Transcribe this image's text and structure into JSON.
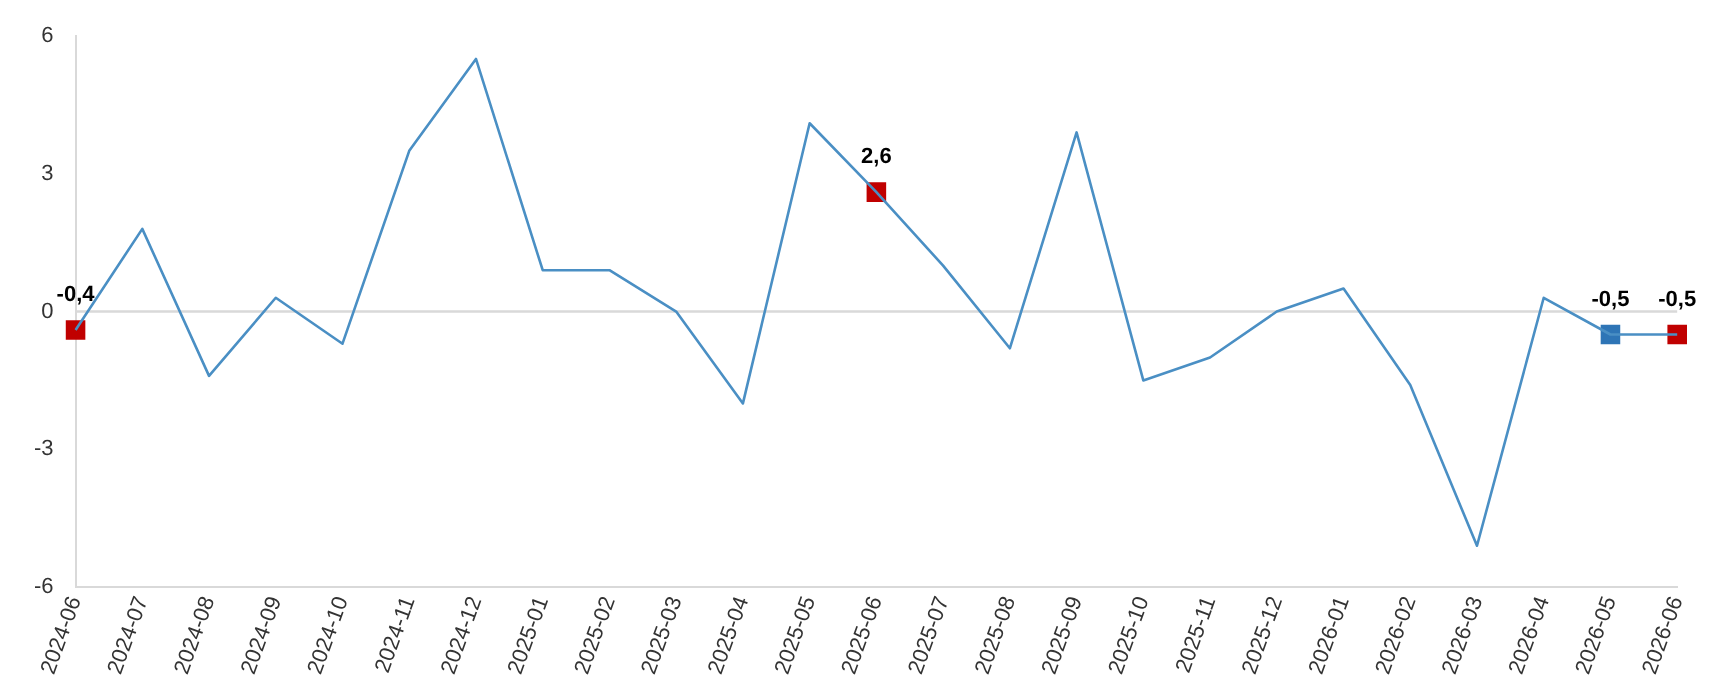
{
  "chart_data": {
    "type": "line",
    "categories": [
      "2024-06",
      "2024-07",
      "2024-08",
      "2024-09",
      "2024-10",
      "2024-11",
      "2024-12",
      "2025-01",
      "2025-02",
      "2025-03",
      "2025-04",
      "2025-05",
      "2025-06",
      "2025-07",
      "2025-08",
      "2025-09",
      "2025-10",
      "2025-11",
      "2025-12",
      "2026-01",
      "2026-02",
      "2026-03",
      "2026-04",
      "2026-05",
      "2026-06"
    ],
    "series": [
      {
        "color": "#4a8fc4",
        "marker": "none",
        "values": [
          -0.4,
          1.8,
          -1.4,
          0.3,
          -0.7,
          3.5,
          5.5,
          0.9,
          0.9,
          0.0,
          -2.0,
          4.1,
          2.6,
          1.0,
          -0.8,
          3.9,
          -1.5,
          -1.0,
          0.0,
          0.5,
          -1.6,
          -5.1,
          0.3,
          -0.5,
          -0.5
        ]
      },
      {
        "type": "scatter",
        "marker": "square",
        "colors": [
          "#c00000",
          null,
          null,
          null,
          null,
          null,
          null,
          null,
          null,
          null,
          null,
          null,
          "#c00000",
          null,
          null,
          null,
          null,
          null,
          null,
          null,
          null,
          null,
          null,
          "#2e75b6",
          "#c00000"
        ],
        "values": [
          -0.4,
          null,
          null,
          null,
          null,
          null,
          null,
          null,
          null,
          null,
          null,
          null,
          2.6,
          null,
          null,
          null,
          null,
          null,
          null,
          null,
          null,
          null,
          null,
          -0.5,
          -0.5
        ],
        "value_labels": [
          "-0,4",
          null,
          null,
          null,
          null,
          null,
          null,
          null,
          null,
          null,
          null,
          null,
          "2,6",
          null,
          null,
          null,
          null,
          null,
          null,
          null,
          null,
          null,
          null,
          "-0,5",
          "-0,5"
        ]
      }
    ],
    "ylim": [
      -6,
      6
    ],
    "yticks": [
      -6,
      -3,
      0,
      3,
      6
    ],
    "ref_lines": [
      {
        "axis": "y",
        "value": 0,
        "color": "#d9d9d9"
      }
    ],
    "grid": false,
    "legend": false
  }
}
